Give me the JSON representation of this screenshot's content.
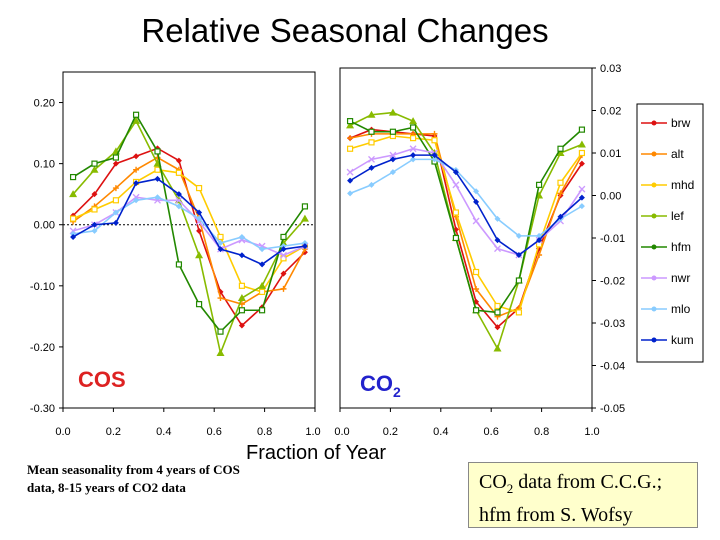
{
  "title": "Relative Seasonal Changes",
  "xlabel": "Fraction of Year",
  "note": "Mean seasonality from 4 years of COS data, 8-15 years of CO2 data",
  "credit": {
    "line1_pre": "CO",
    "line1_sub": "2",
    "line1_post": " data from C.C.G.;",
    "line2": "hfm from S. Wofsy"
  },
  "chart_data": [
    {
      "type": "line",
      "panel_label": "COS",
      "panel_color": "#dd2222",
      "ylim": [
        -0.3,
        0.25
      ],
      "xlim": [
        0.0,
        1.0
      ],
      "yticks": [
        "0.20",
        "0.10",
        "0.00",
        "-0.10",
        "-0.20",
        "-0.30"
      ],
      "ytick_values": [
        0.2,
        0.1,
        0.0,
        -0.1,
        -0.2,
        -0.3
      ],
      "xticks": [
        "0.0",
        "0.2",
        "0.4",
        "0.6",
        "0.8",
        "1.0"
      ],
      "x": [
        0.04,
        0.125,
        0.21,
        0.29,
        0.375,
        0.46,
        0.54,
        0.625,
        0.71,
        0.79,
        0.875,
        0.96
      ],
      "series": [
        {
          "name": "brw",
          "color": "#dd1111",
          "values": [
            0.015,
            0.05,
            0.1,
            0.112,
            0.125,
            0.105,
            -0.01,
            -0.11,
            -0.165,
            -0.135,
            -0.08,
            -0.045
          ]
        },
        {
          "name": "alt",
          "color": "#ff8800",
          "values": [
            0.005,
            0.03,
            0.06,
            0.09,
            0.11,
            0.09,
            0.01,
            -0.12,
            -0.13,
            -0.11,
            -0.105,
            -0.04
          ]
        },
        {
          "name": "mhd",
          "color": "#ffcc00",
          "values": [
            0.01,
            0.025,
            0.04,
            0.07,
            0.09,
            0.085,
            0.06,
            -0.02,
            -0.1,
            -0.11,
            -0.055,
            -0.035
          ]
        },
        {
          "name": "lef",
          "color": "#88bb00",
          "values": [
            0.05,
            0.09,
            0.12,
            0.17,
            0.1,
            0.04,
            -0.05,
            -0.21,
            -0.12,
            -0.1,
            -0.03,
            0.01
          ]
        },
        {
          "name": "hfm",
          "color": "#228800",
          "values": [
            0.078,
            0.1,
            0.11,
            0.18,
            0.12,
            -0.065,
            -0.13,
            -0.175,
            -0.14,
            -0.14,
            -0.02,
            0.03
          ]
        },
        {
          "name": "nwr",
          "color": "#cc99ff",
          "values": [
            -0.01,
            0.0,
            0.02,
            0.045,
            0.04,
            0.04,
            0.005,
            -0.04,
            -0.025,
            -0.035,
            -0.05,
            -0.035
          ]
        },
        {
          "name": "mlo",
          "color": "#88ccff",
          "values": [
            -0.015,
            -0.01,
            0.02,
            0.04,
            0.045,
            0.03,
            0.01,
            -0.03,
            -0.02,
            -0.04,
            -0.035,
            -0.03
          ]
        },
        {
          "name": "kum",
          "color": "#0022cc",
          "values": [
            -0.02,
            0.0,
            0.003,
            0.068,
            0.075,
            0.05,
            0.02,
            -0.04,
            -0.05,
            -0.065,
            -0.04,
            -0.035
          ]
        }
      ]
    },
    {
      "type": "line",
      "panel_label": "CO",
      "panel_label_sub": "2",
      "panel_color": "#2222cc",
      "ylim": [
        -0.05,
        0.03
      ],
      "xlim": [
        0.0,
        1.0
      ],
      "yticks": [
        "0.03",
        "0.02",
        "0.01",
        "0.00",
        "-0.01",
        "-0.02",
        "-0.03",
        "-0.04",
        "-0.05"
      ],
      "ytick_values": [
        0.03,
        0.02,
        0.01,
        0.0,
        -0.01,
        -0.02,
        -0.03,
        -0.04,
        -0.05
      ],
      "xticks": [
        "0.0",
        "0.2",
        "0.4",
        "0.6",
        "0.8",
        "1.0"
      ],
      "x": [
        0.04,
        0.125,
        0.21,
        0.29,
        0.375,
        0.46,
        0.54,
        0.625,
        0.71,
        0.79,
        0.875,
        0.96
      ],
      "series": [
        {
          "name": "brw",
          "color": "#dd1111",
          "values": [
            0.0135,
            0.0155,
            0.015,
            0.0145,
            0.014,
            -0.008,
            -0.025,
            -0.031,
            -0.0265,
            -0.0125,
            0.0,
            0.0075
          ]
        },
        {
          "name": "alt",
          "color": "#ff8800",
          "values": [
            0.0135,
            0.0145,
            0.0145,
            0.0145,
            0.0145,
            -0.005,
            -0.022,
            -0.0285,
            -0.0265,
            -0.014,
            0.0005,
            0.0095
          ]
        },
        {
          "name": "mhd",
          "color": "#ffcc00",
          "values": [
            0.011,
            0.0125,
            0.014,
            0.0135,
            0.013,
            -0.004,
            -0.018,
            -0.026,
            -0.0275,
            -0.0115,
            0.003,
            0.01
          ]
        },
        {
          "name": "lef",
          "color": "#88bb00",
          "values": [
            0.0165,
            0.019,
            0.0195,
            0.0175,
            0.01,
            -0.01,
            -0.027,
            -0.036,
            -0.02,
            0.0,
            0.01,
            0.012
          ]
        },
        {
          "name": "hfm",
          "color": "#228800",
          "values": [
            0.0175,
            0.015,
            0.015,
            0.016,
            0.008,
            -0.01,
            -0.027,
            -0.0275,
            -0.02,
            0.0025,
            0.011,
            0.0155
          ]
        },
        {
          "name": "nwr",
          "color": "#cc99ff",
          "values": [
            0.0055,
            0.0085,
            0.0095,
            0.011,
            0.01,
            0.0025,
            -0.006,
            -0.0125,
            -0.014,
            -0.0105,
            -0.006,
            0.0015
          ]
        },
        {
          "name": "mlo",
          "color": "#88ccff",
          "values": [
            0.0005,
            0.0025,
            0.0055,
            0.0085,
            0.0085,
            0.006,
            0.001,
            -0.0055,
            -0.0095,
            -0.0095,
            -0.0055,
            -0.0025
          ]
        },
        {
          "name": "kum",
          "color": "#0022cc",
          "values": [
            0.0035,
            0.0065,
            0.0085,
            0.0095,
            0.0095,
            0.0055,
            -0.0015,
            -0.0105,
            -0.014,
            -0.0105,
            -0.005,
            -0.0005
          ]
        }
      ]
    }
  ],
  "legend": [
    "brw",
    "alt",
    "mhd",
    "lef",
    "hfm",
    "nwr",
    "mlo",
    "kum"
  ]
}
